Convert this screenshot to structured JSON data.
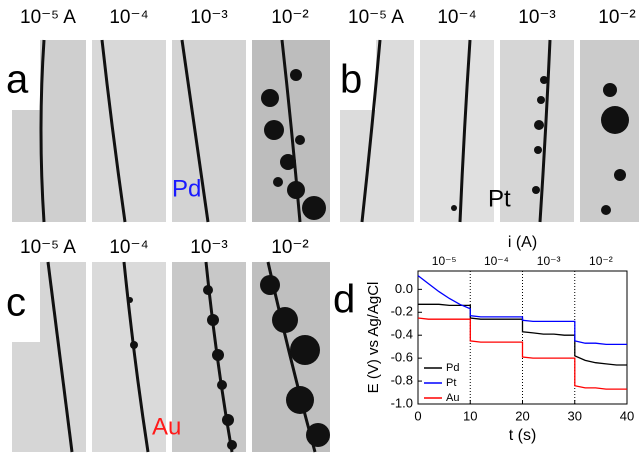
{
  "panels": [
    {
      "letter": "a",
      "labels": [
        "10⁻⁵ A",
        "10⁻⁴",
        "10⁻³",
        "10⁻²"
      ],
      "metal": "Pd"
    },
    {
      "letter": "b",
      "labels": [
        "10⁻⁵ A",
        "10⁻⁴",
        "10⁻³",
        "10⁻²"
      ],
      "metal": "Pt"
    },
    {
      "letter": "c",
      "labels": [
        "10⁻⁵ A",
        "10⁻⁴",
        "10⁻³",
        "10⁻²"
      ],
      "metal": "Au"
    }
  ],
  "chart_data": {
    "type": "line",
    "letter": "d",
    "x_label": "t (s)",
    "y_label": "E (V) vs Ag/AgCl",
    "top_label": "i (A)",
    "xlim": [
      0,
      40
    ],
    "xticks": [
      0,
      10,
      20,
      30,
      40
    ],
    "ylim": [
      -1.0,
      0.16
    ],
    "yticks": [
      {
        "value": 0,
        "label": "0.0"
      },
      -0.2,
      -0.4,
      -0.6,
      -0.8,
      {
        "value": -1,
        "label": "-1.0"
      }
    ],
    "top_ticks": [
      {
        "value": 5,
        "label": "10⁻⁵"
      },
      {
        "value": 15,
        "label": "10⁻⁴"
      },
      {
        "value": 25,
        "label": "10⁻³"
      },
      {
        "value": 35,
        "label": "10⁻²"
      }
    ],
    "dividers": [
      10,
      20,
      30
    ],
    "x": [
      0,
      2,
      4,
      6,
      8,
      10,
      10,
      12,
      14,
      16,
      18,
      20,
      20,
      22,
      24,
      26,
      28,
      30,
      30,
      32,
      34,
      36,
      38,
      40
    ],
    "series": [
      {
        "name": "Pd",
        "color": "#000000",
        "values": [
          -0.13,
          -0.13,
          -0.13,
          -0.14,
          -0.14,
          -0.14,
          -0.25,
          -0.26,
          -0.26,
          -0.26,
          -0.26,
          -0.26,
          -0.37,
          -0.38,
          -0.39,
          -0.39,
          -0.4,
          -0.4,
          -0.58,
          -0.62,
          -0.64,
          -0.65,
          -0.66,
          -0.66
        ]
      },
      {
        "name": "Pt",
        "color": "#0000ff",
        "values": [
          0.12,
          0.05,
          -0.02,
          -0.08,
          -0.13,
          -0.17,
          -0.23,
          -0.24,
          -0.24,
          -0.24,
          -0.24,
          -0.24,
          -0.27,
          -0.28,
          -0.28,
          -0.28,
          -0.28,
          -0.28,
          -0.45,
          -0.47,
          -0.47,
          -0.48,
          -0.48,
          -0.48
        ]
      },
      {
        "name": "Au",
        "color": "#ff0000",
        "values": [
          -0.25,
          -0.26,
          -0.26,
          -0.26,
          -0.26,
          -0.26,
          -0.45,
          -0.46,
          -0.46,
          -0.46,
          -0.46,
          -0.46,
          -0.59,
          -0.6,
          -0.6,
          -0.6,
          -0.6,
          -0.6,
          -0.84,
          -0.86,
          -0.86,
          -0.87,
          -0.87,
          -0.87
        ]
      }
    ]
  }
}
